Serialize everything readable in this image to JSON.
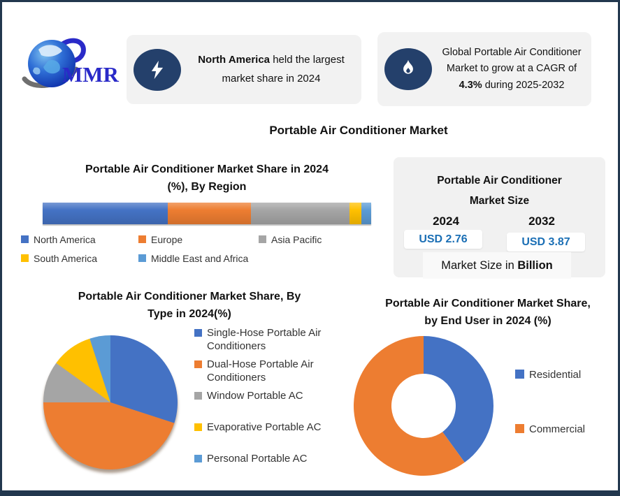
{
  "brand": {
    "name": "MMR"
  },
  "callout1": {
    "bold": "North America",
    "rest": " held the largest market share in 2024"
  },
  "callout2": {
    "before": "Global Portable Air Conditioner Market to grow at a CAGR of ",
    "bold": "4.3%",
    "after": " during 2025-2032"
  },
  "main_title": "Portable Air Conditioner Market",
  "market_size": {
    "title_line1": "Portable Air Conditioner",
    "title_line2": "Market Size",
    "year1": "2024",
    "value1": "USD 2.76",
    "year2": "2032",
    "value2": "USD 3.87",
    "unit_before": "Market Size in ",
    "unit_bold": "Billion"
  },
  "chart_data": [
    {
      "id": "region_share",
      "type": "bar",
      "subtype": "horizontal-stacked",
      "title": "Portable Air Conditioner Market Share in 2024 (%), By Region",
      "title_lines": [
        "Portable Air Conditioner Market Share in 2024",
        "(%), By Region"
      ],
      "categories": [
        "North America",
        "Europe",
        "Asia Pacific",
        "South America",
        "Middle East and Africa"
      ],
      "values": [
        38,
        25.5,
        30,
        3.5,
        3
      ],
      "unit": "%",
      "colors": [
        "#4472c4",
        "#ed7d31",
        "#a5a5a5",
        "#ffc000",
        "#5b9bd5"
      ],
      "legend_position": "bottom"
    },
    {
      "id": "type_share",
      "type": "pie",
      "title": "Portable Air Conditioner Market Share, By Type in 2024(%)",
      "title_lines": [
        "Portable Air Conditioner Market Share, By",
        "Type in 2024(%)"
      ],
      "categories": [
        "Single-Hose Portable Air Conditioners",
        "Dual-Hose Portable Air Conditioners",
        "Window Portable AC",
        "Evaporative Portable AC",
        "Personal Portable AC"
      ],
      "values": [
        30,
        45,
        10,
        10,
        5
      ],
      "unit": "%",
      "colors": [
        "#4472c4",
        "#ed7d31",
        "#a5a5a5",
        "#ffc000",
        "#5b9bd5"
      ],
      "legend_position": "right"
    },
    {
      "id": "end_user_share",
      "type": "pie",
      "subtype": "donut",
      "title": "Portable Air Conditioner Market Share, by End User in 2024 (%)",
      "title_lines": [
        "Portable Air Conditioner Market Share,",
        "by End User in 2024 (%)"
      ],
      "categories": [
        "Residential",
        "Commercial"
      ],
      "values": [
        40,
        60
      ],
      "unit": "%",
      "colors": [
        "#4472c4",
        "#ed7d31"
      ],
      "legend_position": "right"
    }
  ],
  "colors": {
    "border_navy": "#22374e",
    "icon_navy": "#24406b",
    "panel_gray": "#f2f2f2",
    "value_blue": "#1b6fb5"
  }
}
